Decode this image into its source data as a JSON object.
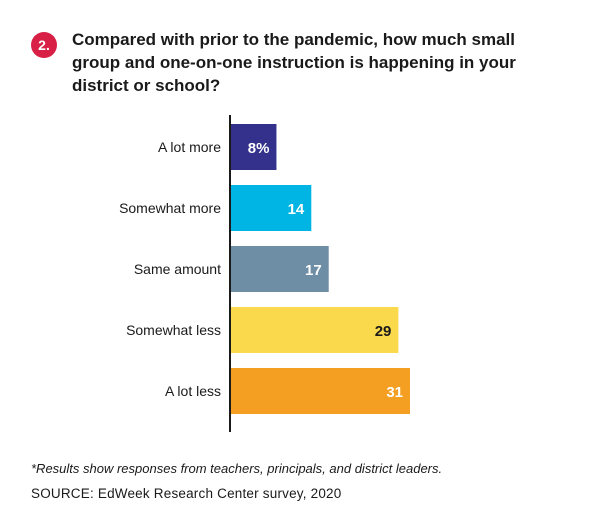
{
  "question": {
    "number": "2.",
    "text": "Compared with prior to the pandemic, how much small group and one-on-one instruction is happening in your district or school?"
  },
  "chart_data": {
    "type": "bar",
    "orientation": "horizontal",
    "categories": [
      "A lot more",
      "Somewhat more",
      "Same amount",
      "Somewhat less",
      "A lot less"
    ],
    "values": [
      8,
      14,
      17,
      29,
      31
    ],
    "value_labels": [
      "8%",
      "14",
      "17",
      "29",
      "31"
    ],
    "colors": [
      "#33318c",
      "#00b4e3",
      "#6e8ea6",
      "#fbd94c",
      "#f49f22"
    ],
    "label_colors": [
      "#ffffff",
      "#ffffff",
      "#ffffff",
      "#1a1a1a",
      "#ffffff"
    ],
    "unit": "%",
    "xlim": [
      0,
      31
    ]
  },
  "footnote": "*Results show responses from teachers, principals, and district leaders.",
  "source": "SOURCE: EdWeek Research Center survey, 2020"
}
